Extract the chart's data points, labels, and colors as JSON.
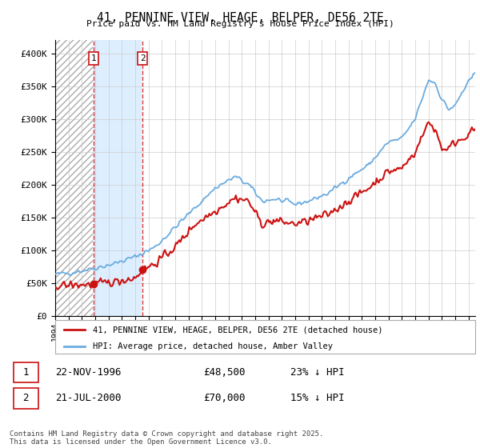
{
  "title": "41, PENNINE VIEW, HEAGE, BELPER, DE56 2TE",
  "subtitle": "Price paid vs. HM Land Registry's House Price Index (HPI)",
  "ylim": [
    0,
    420000
  ],
  "yticks": [
    0,
    50000,
    100000,
    150000,
    200000,
    250000,
    300000,
    350000,
    400000
  ],
  "ytick_labels": [
    "£0",
    "£50K",
    "£100K",
    "£150K",
    "£200K",
    "£250K",
    "£300K",
    "£350K",
    "£400K"
  ],
  "sale1_date": 1996.9,
  "sale1_price": 48500,
  "sale1_label": "1",
  "sale2_date": 2000.55,
  "sale2_price": 70000,
  "sale2_label": "2",
  "hpi_line_color": "#6aabe0",
  "price_line_color": "#cc1111",
  "sale_dot_color": "#cc1111",
  "vline_color": "#cc1111",
  "grid_color": "#cccccc",
  "bg_color": "#ffffff",
  "plot_bg_color": "#ffffff",
  "hatch_fill_color": "#ddeeff",
  "legend_label1": "41, PENNINE VIEW, HEAGE, BELPER, DE56 2TE (detached house)",
  "legend_label2": "HPI: Average price, detached house, Amber Valley",
  "table_row1": [
    "1",
    "22-NOV-1996",
    "£48,500",
    "23% ↓ HPI"
  ],
  "table_row2": [
    "2",
    "21-JUL-2000",
    "£70,000",
    "15% ↓ HPI"
  ],
  "footer": "Contains HM Land Registry data © Crown copyright and database right 2025.\nThis data is licensed under the Open Government Licence v3.0.",
  "xmin": 1994.0,
  "xmax": 2025.5
}
